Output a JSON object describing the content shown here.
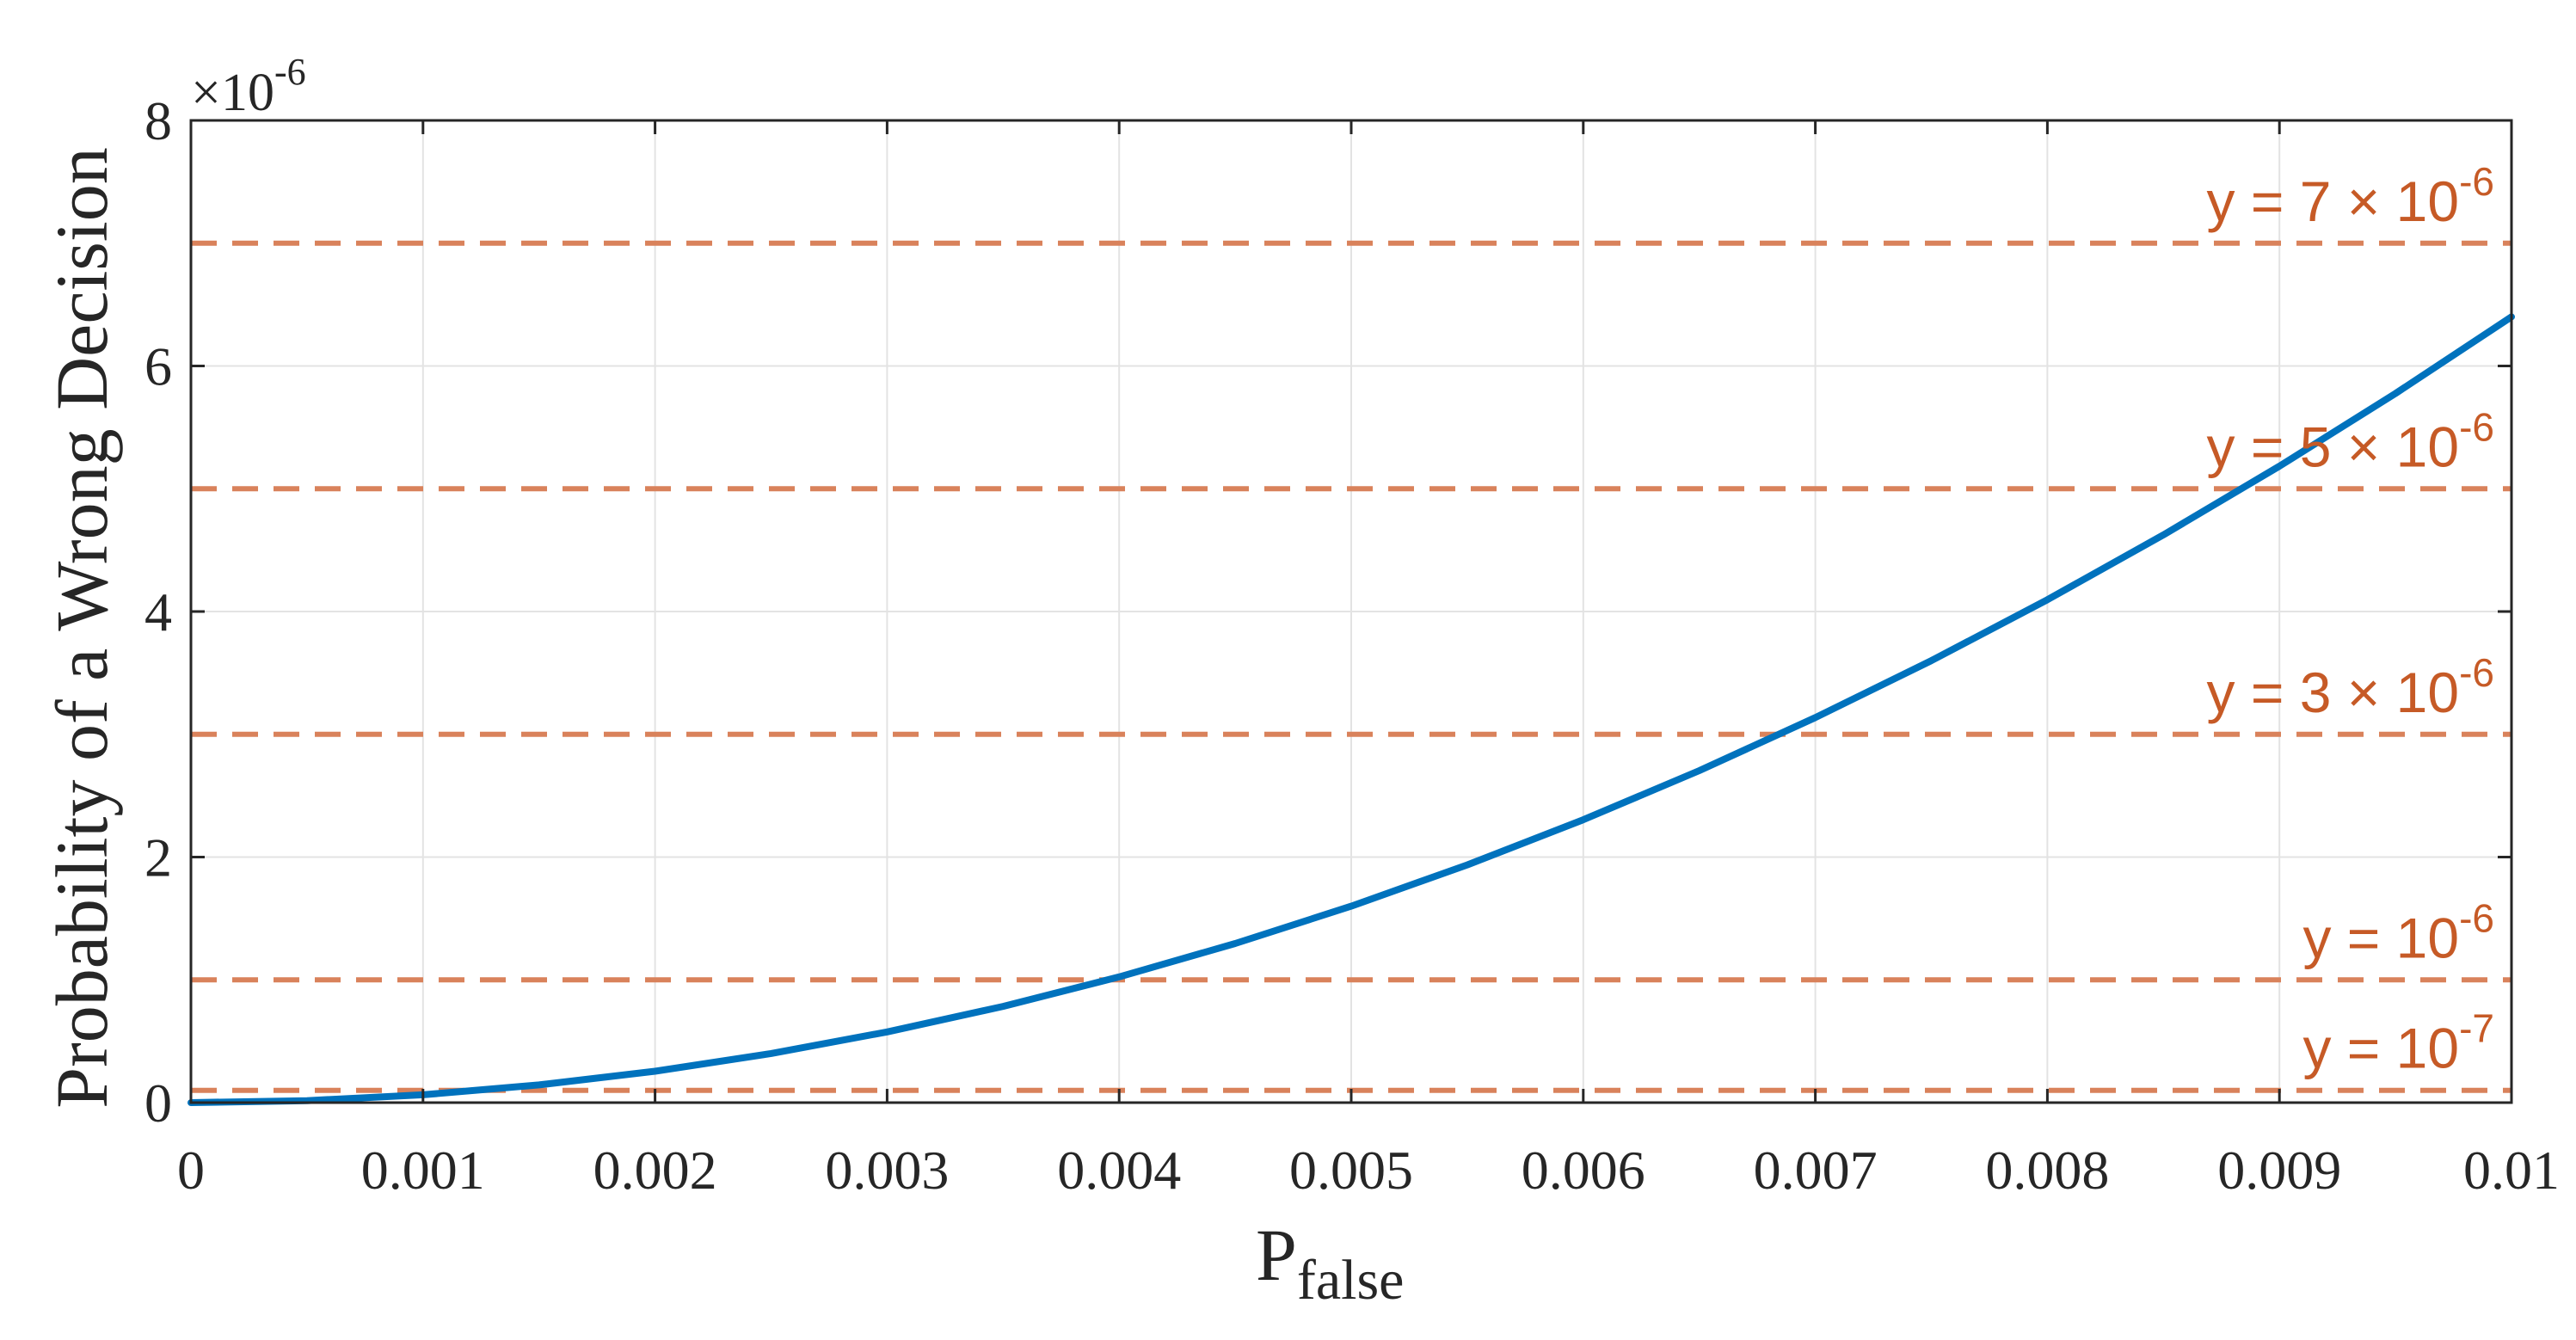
{
  "chart_data": {
    "type": "line",
    "xlabel": "P",
    "xlabel_subscript": "false",
    "ylabel": "Probability of a Wrong Decision",
    "y_exponent_base": "10",
    "y_exponent_power": "-6",
    "y_exponent_mult": "×",
    "xlim": [
      0,
      0.01
    ],
    "ylim": [
      0,
      8e-06
    ],
    "x_ticks": [
      0,
      0.001,
      0.002,
      0.003,
      0.004,
      0.005,
      0.006,
      0.007,
      0.008,
      0.009,
      0.01
    ],
    "x_tick_labels": [
      "0",
      "0.001",
      "0.002",
      "0.003",
      "0.004",
      "0.005",
      "0.006",
      "0.007",
      "0.008",
      "0.009",
      "0.01"
    ],
    "y_ticks": [
      0,
      2e-06,
      4e-06,
      6e-06,
      8e-06
    ],
    "y_tick_labels": [
      "0",
      "2",
      "4",
      "6",
      "8"
    ],
    "grid": true,
    "series": [
      {
        "color": "#0072bd",
        "x": [
          0,
          0.0005,
          0.001,
          0.0015,
          0.002,
          0.0025,
          0.003,
          0.0035,
          0.004,
          0.0045,
          0.005,
          0.0055,
          0.006,
          0.0065,
          0.007,
          0.0075,
          0.008,
          0.0085,
          0.009,
          0.0095,
          0.01
        ],
        "y": [
          0,
          1.6e-08,
          6.4e-08,
          1.44e-07,
          2.56e-07,
          4e-07,
          5.76e-07,
          7.84e-07,
          1.024e-06,
          1.296e-06,
          1.6e-06,
          1.936e-06,
          2.304e-06,
          2.704e-06,
          3.136e-06,
          3.6e-06,
          4.096e-06,
          4.624e-06,
          5.184e-06,
          5.776e-06,
          6.4e-06
        ]
      }
    ],
    "reference_lines": [
      {
        "y": 7e-06,
        "color": "#d9825b",
        "label_prefix": "y = 7 × 10",
        "label_power": "-6"
      },
      {
        "y": 5e-06,
        "color": "#d9825b",
        "label_prefix": "y = 5 × 10",
        "label_power": "-6"
      },
      {
        "y": 3e-06,
        "color": "#d9825b",
        "label_prefix": "y = 3 × 10",
        "label_power": "-6"
      },
      {
        "y": 1e-06,
        "color": "#d9825b",
        "label_prefix": "y = 10",
        "label_power": "-6"
      },
      {
        "y": 1e-07,
        "color": "#d9825b",
        "label_prefix": "y = 10",
        "label_power": "-7"
      }
    ]
  }
}
